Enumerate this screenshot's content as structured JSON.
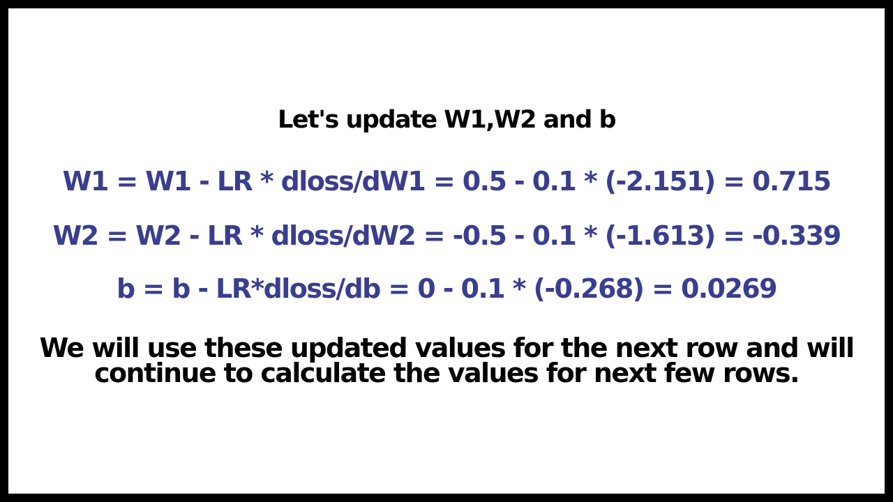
{
  "slide": {
    "title": "Let's update W1,W2 and b",
    "equation_color": "#3a3e8f",
    "equations": [
      "W1 = W1 - LR * dloss/dW1 = 0.5 - 0.1 * (-2.151) = 0.715",
      "W2 = W2 - LR * dloss/dW2 = -0.5 - 0.1 * (-1.613) = -0.339",
      "b = b - LR*dloss/db = 0 - 0.1 * (-0.268) = 0.0269"
    ],
    "note_lines": [
      "We will use these updated values for the next row and will",
      "continue to calculate the values for next few rows."
    ]
  }
}
